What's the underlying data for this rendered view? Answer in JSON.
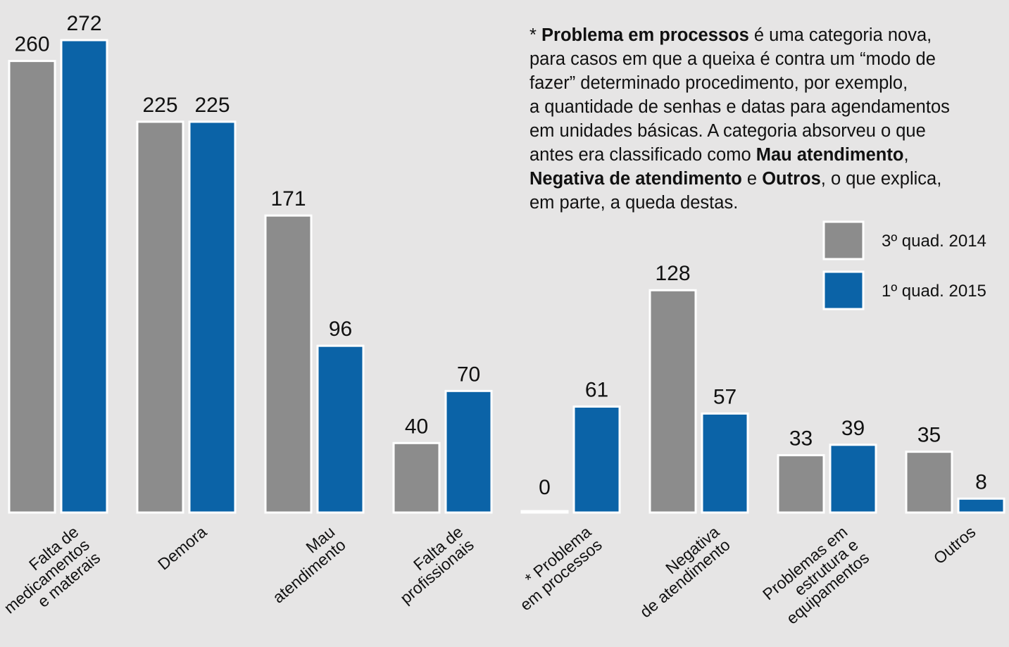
{
  "chart_data": {
    "type": "bar",
    "categories": [
      [
        "Falta de",
        "medicamentos",
        "e materais"
      ],
      [
        "Demora"
      ],
      [
        "Mau",
        "atendimento"
      ],
      [
        "Falta de",
        "profissionais"
      ],
      [
        "* Problema",
        "em processos"
      ],
      [
        "Negativa",
        "de atendimento"
      ],
      [
        "Problemas em",
        "estrutura e",
        "equipamentos"
      ],
      [
        "Outros"
      ]
    ],
    "series": [
      {
        "name": "3º quad. 2014",
        "color": "#8c8c8c",
        "values": [
          260,
          225,
          171,
          40,
          0,
          128,
          33,
          35
        ]
      },
      {
        "name": "1º quad. 2015",
        "color": "#0b63a7",
        "values": [
          272,
          225,
          96,
          70,
          61,
          57,
          39,
          8
        ]
      }
    ],
    "legend": "right",
    "note": [
      [
        {
          "text": "* ",
          "bold": false
        },
        {
          "text": "Problema em processos",
          "bold": true
        },
        {
          "text": " é uma categoria nova,",
          "bold": false
        }
      ],
      [
        {
          "text": "para casos em que a queixa é contra um “modo de",
          "bold": false
        }
      ],
      [
        {
          "text": "fazer” determinado procedimento, por exemplo,",
          "bold": false
        }
      ],
      [
        {
          "text": "a quantidade de senhas e datas para agendamentos",
          "bold": false
        }
      ],
      [
        {
          "text": "em unidades básicas. A categoria absorveu o que",
          "bold": false
        }
      ],
      [
        {
          "text": "antes era classificado como ",
          "bold": false
        },
        {
          "text": "Mau atendimento",
          "bold": true
        },
        {
          "text": ",",
          "bold": false
        }
      ],
      [
        {
          "text": "Negativa de atendimento",
          "bold": true
        },
        {
          "text": " e ",
          "bold": false
        },
        {
          "text": "Outros",
          "bold": true
        },
        {
          "text": ", o que explica,",
          "bold": false
        }
      ],
      [
        {
          "text": "em parte, a queda destas.",
          "bold": false
        }
      ]
    ]
  }
}
